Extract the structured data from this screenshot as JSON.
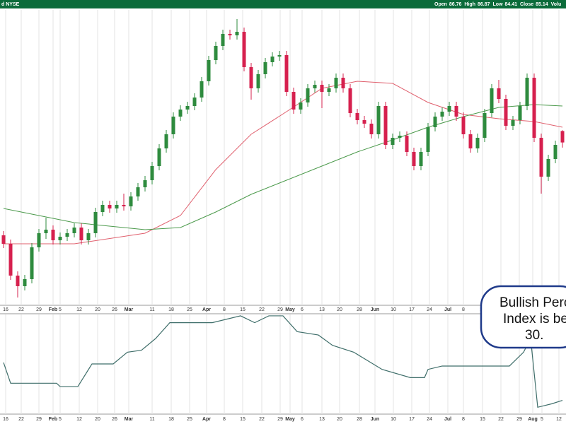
{
  "header": {
    "left": "d NYSE",
    "labels": [
      "Open",
      "High",
      "Low",
      "Close",
      "Volu"
    ]
  },
  "chart_data": [
    {
      "type": "candlestick",
      "up_color": "#2e8b3e",
      "down_color": "#d6204e",
      "ylim": [
        62.1,
        103.9
      ],
      "xticks": [
        {
          "value": 0.3,
          "label": "16"
        },
        {
          "value": 2.5,
          "label": "22"
        },
        {
          "value": 5,
          "label": "29"
        },
        {
          "value": 7,
          "label": "Feb"
        },
        {
          "value": 8,
          "label": "5"
        },
        {
          "value": 10.7,
          "label": "12"
        },
        {
          "value": 13.3,
          "label": "20"
        },
        {
          "value": 15.7,
          "label": "26"
        },
        {
          "value": 17.7,
          "label": "Mar"
        },
        {
          "value": 21,
          "label": "11"
        },
        {
          "value": 23.7,
          "label": "18"
        },
        {
          "value": 26.3,
          "label": "25"
        },
        {
          "value": 28.7,
          "label": "Apr"
        },
        {
          "value": 31.2,
          "label": "8"
        },
        {
          "value": 33.8,
          "label": "15"
        },
        {
          "value": 36.5,
          "label": "22"
        },
        {
          "value": 39.1,
          "label": "29"
        },
        {
          "value": 40.5,
          "label": "May"
        },
        {
          "value": 42.2,
          "label": "6"
        },
        {
          "value": 45,
          "label": "13"
        },
        {
          "value": 47.5,
          "label": "20"
        },
        {
          "value": 50.3,
          "label": "28"
        },
        {
          "value": 52.5,
          "label": "Jun"
        },
        {
          "value": 55.1,
          "label": "10"
        },
        {
          "value": 57.7,
          "label": "17"
        },
        {
          "value": 60.2,
          "label": "24"
        },
        {
          "value": 62.8,
          "label": "Jul"
        },
        {
          "value": 65,
          "label": "8"
        },
        {
          "value": 67.7,
          "label": "15"
        },
        {
          "value": 70.3,
          "label": "22"
        },
        {
          "value": 72.9,
          "label": "29"
        },
        {
          "value": 74.8,
          "label": "Aug"
        },
        {
          "value": 76.1,
          "label": "5"
        },
        {
          "value": 78.5,
          "label": "12"
        }
      ],
      "candles": [
        [
          72.0,
          72.6,
          70.2,
          70.8
        ],
        [
          70.8,
          71.4,
          65.7,
          66.3
        ],
        [
          66.3,
          66.9,
          63.2,
          64.8
        ],
        [
          64.8,
          66.4,
          64.2,
          65.8
        ],
        [
          65.8,
          70.9,
          65.2,
          70.3
        ],
        [
          70.3,
          72.9,
          69.7,
          72.3
        ],
        [
          72.3,
          74.5,
          71.5,
          72.8
        ],
        [
          72.8,
          73.4,
          70.7,
          71.3
        ],
        [
          71.3,
          72.4,
          70.7,
          71.8
        ],
        [
          71.8,
          72.9,
          71.2,
          72.3
        ],
        [
          72.3,
          73.7,
          71.7,
          73.1
        ],
        [
          73.1,
          73.7,
          70.7,
          71.3
        ],
        [
          71.3,
          72.9,
          70.7,
          72.3
        ],
        [
          72.3,
          75.9,
          71.7,
          75.3
        ],
        [
          75.3,
          76.9,
          74.7,
          76.3
        ],
        [
          76.3,
          76.9,
          75.2,
          75.8
        ],
        [
          75.8,
          76.9,
          75.2,
          76.3
        ],
        [
          76.3,
          77.9,
          75.5,
          76.1
        ],
        [
          76.1,
          78.1,
          75.5,
          77.5
        ],
        [
          77.5,
          79.4,
          76.9,
          78.8
        ],
        [
          78.8,
          80.4,
          78.2,
          79.8
        ],
        [
          79.8,
          82.4,
          79.2,
          81.8
        ],
        [
          81.8,
          84.9,
          81.2,
          84.3
        ],
        [
          84.3,
          86.9,
          83.7,
          86.3
        ],
        [
          86.3,
          89.4,
          85.7,
          88.8
        ],
        [
          88.8,
          90.4,
          88.2,
          89.8
        ],
        [
          89.8,
          90.9,
          89.2,
          90.3
        ],
        [
          90.3,
          92.1,
          89.7,
          91.5
        ],
        [
          91.5,
          94.4,
          90.9,
          93.8
        ],
        [
          93.8,
          97.4,
          93.2,
          96.8
        ],
        [
          96.8,
          99.4,
          96.2,
          98.8
        ],
        [
          98.8,
          101.1,
          98.2,
          100.5
        ],
        [
          100.5,
          101.1,
          99.7,
          100.3
        ],
        [
          100.3,
          102.6,
          99.7,
          100.8
        ],
        [
          100.8,
          101.4,
          95.2,
          95.8
        ],
        [
          95.8,
          96.4,
          91.2,
          92.8
        ],
        [
          92.8,
          95.4,
          92.2,
          94.8
        ],
        [
          94.8,
          97.1,
          94.2,
          96.5
        ],
        [
          96.5,
          97.9,
          95.9,
          97.3
        ],
        [
          97.3,
          98.1,
          96.7,
          97.5
        ],
        [
          97.5,
          98.1,
          91.7,
          92.3
        ],
        [
          92.3,
          92.9,
          89.2,
          89.8
        ],
        [
          89.8,
          91.4,
          89.2,
          90.8
        ],
        [
          90.8,
          93.4,
          90.2,
          92.8
        ],
        [
          92.8,
          93.9,
          92.2,
          93.3
        ],
        [
          93.3,
          93.9,
          90.0,
          92.3
        ],
        [
          92.3,
          93.4,
          91.7,
          92.8
        ],
        [
          92.8,
          94.9,
          92.2,
          94.3
        ],
        [
          94.3,
          94.9,
          92.2,
          92.8
        ],
        [
          92.8,
          93.4,
          88.7,
          89.3
        ],
        [
          89.3,
          89.9,
          87.7,
          88.3
        ],
        [
          88.3,
          88.9,
          87.2,
          87.8
        ],
        [
          87.8,
          88.4,
          85.7,
          86.3
        ],
        [
          86.3,
          90.9,
          85.7,
          90.3
        ],
        [
          90.3,
          90.9,
          84.2,
          84.8
        ],
        [
          84.8,
          86.4,
          84.2,
          85.8
        ],
        [
          85.8,
          86.7,
          85.2,
          86.1
        ],
        [
          86.1,
          86.7,
          83.2,
          83.8
        ],
        [
          83.8,
          84.4,
          81.2,
          81.8
        ],
        [
          81.8,
          84.4,
          81.2,
          83.8
        ],
        [
          83.8,
          87.9,
          83.2,
          87.3
        ],
        [
          87.3,
          89.4,
          86.7,
          88.8
        ],
        [
          88.8,
          90.1,
          88.2,
          89.5
        ],
        [
          89.5,
          90.9,
          88.9,
          90.3
        ],
        [
          90.3,
          90.9,
          88.2,
          88.8
        ],
        [
          88.8,
          89.4,
          85.7,
          86.3
        ],
        [
          86.3,
          86.9,
          83.7,
          84.3
        ],
        [
          84.3,
          86.4,
          83.7,
          85.8
        ],
        [
          85.8,
          89.9,
          85.2,
          89.3
        ],
        [
          89.3,
          93.4,
          88.7,
          92.8
        ],
        [
          92.8,
          94.0,
          90.7,
          91.3
        ],
        [
          91.3,
          91.9,
          86.9,
          87.5
        ],
        [
          87.5,
          88.9,
          86.9,
          88.3
        ],
        [
          88.3,
          90.9,
          87.7,
          90.3
        ],
        [
          90.3,
          94.9,
          89.7,
          94.3
        ],
        [
          94.3,
          94.9,
          85.2,
          85.8
        ],
        [
          85.8,
          86.4,
          77.9,
          80.3
        ],
        [
          80.3,
          83.4,
          79.7,
          82.8
        ],
        [
          82.8,
          85.4,
          82.2,
          84.8
        ],
        [
          86.76,
          86.87,
          84.41,
          85.14
        ]
      ],
      "overlays": [
        {
          "color": "#e0606e",
          "x": [
            0,
            10,
            20,
            25,
            30,
            35,
            40,
            45,
            50,
            55,
            60,
            65,
            70,
            75,
            79
          ],
          "values": [
            70.8,
            70.8,
            72.3,
            74.8,
            81.3,
            86.3,
            89.5,
            92.8,
            93.8,
            93.5,
            90.8,
            89.1,
            88.5,
            88.1,
            87.3
          ]
        },
        {
          "color": "#4c9a4c",
          "x": [
            0,
            10,
            20,
            25,
            30,
            35,
            40,
            45,
            50,
            55,
            60,
            65,
            70,
            75,
            79
          ],
          "values": [
            75.8,
            73.8,
            72.8,
            73.1,
            75.3,
            77.8,
            79.8,
            81.8,
            83.8,
            85.5,
            87.3,
            88.8,
            90.1,
            90.5,
            90.3
          ]
        }
      ]
    },
    {
      "type": "line",
      "color": "#3f6e6a",
      "ylim": [
        10,
        90
      ],
      "x": [
        0,
        1,
        7.5,
        8,
        10.5,
        12.5,
        15.5,
        17.5,
        19.5,
        21.5,
        23.5,
        29.5,
        33.5,
        35.5,
        37.5,
        39.5,
        41.5,
        44.5,
        46.5,
        49.5,
        53.5,
        57.5,
        59.5,
        60,
        62,
        71.5,
        73.5,
        74.5,
        75.5,
        77.5,
        79
      ],
      "values": [
        51.4,
        34.8,
        34.8,
        32.1,
        32.1,
        50.3,
        50.3,
        59.7,
        61.3,
        70.7,
        83.4,
        83.4,
        88.9,
        83.4,
        88.9,
        88.9,
        76.2,
        73.5,
        65.2,
        59.7,
        45.9,
        39.3,
        39.3,
        45.9,
        48.6,
        48.6,
        59.7,
        70.7,
        15.5,
        18.3,
        21.0
      ],
      "annotation": [
        "Bullish Perc",
        "Index is bel",
        "30."
      ]
    }
  ]
}
